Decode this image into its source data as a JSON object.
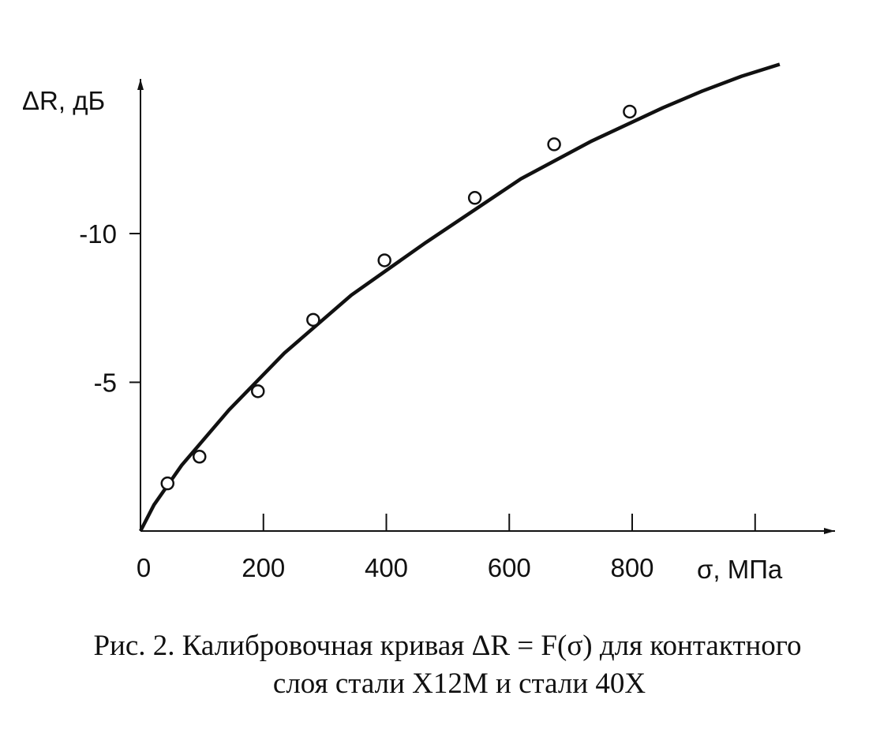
{
  "chart_data": {
    "type": "scatter",
    "y_label": "ΔR, дБ",
    "x_label": "σ, МПа",
    "caption": [
      "Рис. 2. Калибровочная кривая ΔR = F(σ) для контактного",
      "слоя стали Х12М и стали 40Х"
    ],
    "xlim": [
      0,
      1130
    ],
    "ylim": [
      0,
      -15.2
    ],
    "xticks": [
      0,
      200,
      400,
      600,
      800
    ],
    "xminor_ticks": [
      1000
    ],
    "yticks": [
      -5,
      -10
    ],
    "points": {
      "x": [
        44,
        96,
        191,
        281,
        397,
        544,
        673,
        796
      ],
      "y": [
        -1.6,
        -2.5,
        -4.7,
        -7.1,
        -9.1,
        -11.2,
        -13.0,
        -14.1
      ]
    },
    "curve": {
      "x": [
        0,
        22,
        67,
        144,
        234,
        343,
        465,
        619,
        734,
        850,
        914,
        978,
        1040
      ],
      "y": [
        0,
        -0.88,
        -2.21,
        -4.07,
        -5.98,
        -7.93,
        -9.71,
        -11.84,
        -13.11,
        -14.23,
        -14.79,
        -15.29,
        -15.69
      ]
    },
    "color": "#111111"
  }
}
